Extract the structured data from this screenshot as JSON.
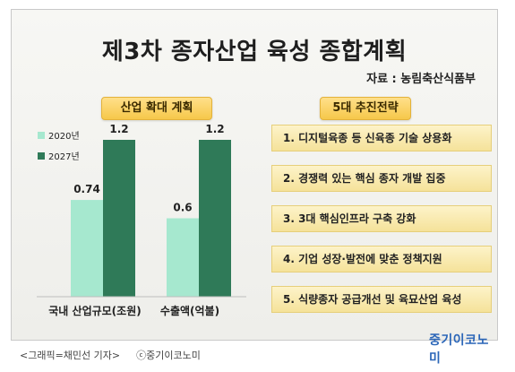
{
  "header": {
    "title": "제3차 종자산업 육성 종합계획",
    "source": "자료 : 농림축산식품부"
  },
  "left_panel": {
    "heading": "산업 확대 계획"
  },
  "right_panel": {
    "heading": "5대 추진전략",
    "items": [
      "1. 디지털육종 등 신육종 기술 상용화",
      "2. 경쟁력 있는 핵심 종자 개발 집중",
      "3. 3대 핵심인프라 구축 강화",
      "4. 기업 성장·발전에 맞춘 정책지원",
      "5. 식량종자 공급개선 및 육묘산업 육성"
    ]
  },
  "logo": "중기이코노미",
  "caption": {
    "left": "<그래픽=채민선 기자>",
    "right": "ⓒ중기이코노미"
  },
  "colors": {
    "series_2020": "#a6e8cf",
    "series_2027": "#2f7a58",
    "pill": "#f6c84a",
    "strategy_box": "#f8e7a8",
    "logo": "#2b66b8"
  },
  "chart_data": {
    "type": "bar",
    "title": "산업 확대 계획",
    "categories": [
      "국내 산업규모(조원)",
      "수출액(억불)"
    ],
    "series": [
      {
        "name": "2020년",
        "values": [
          0.74,
          0.6
        ]
      },
      {
        "name": "2027년",
        "values": [
          1.2,
          1.2
        ]
      }
    ],
    "data_labels": true,
    "legend": "left",
    "ylim": [
      0,
      1.2
    ],
    "grid": false
  }
}
